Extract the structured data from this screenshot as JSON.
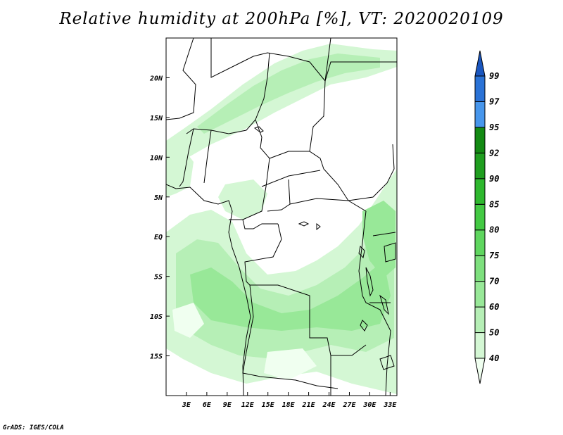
{
  "title": "Relative humidity at 200hPa [%], VT: 2020020109",
  "credit": "GrADS: IGES/COLA",
  "map": {
    "lon_range": [
      0,
      34
    ],
    "lat_range": [
      -20,
      25
    ],
    "lon_ticks": [
      {
        "value": 3,
        "label": "3E"
      },
      {
        "value": 6,
        "label": "6E"
      },
      {
        "value": 9,
        "label": "9E"
      },
      {
        "value": 12,
        "label": "12E"
      },
      {
        "value": 15,
        "label": "15E"
      },
      {
        "value": 18,
        "label": "18E"
      },
      {
        "value": 21,
        "label": "21E"
      },
      {
        "value": 24,
        "label": "24E"
      },
      {
        "value": 27,
        "label": "27E"
      },
      {
        "value": 30,
        "label": "30E"
      },
      {
        "value": 33,
        "label": "33E"
      }
    ],
    "lat_ticks": [
      {
        "value": 20,
        "label": "20N"
      },
      {
        "value": 15,
        "label": "15N"
      },
      {
        "value": 10,
        "label": "10N"
      },
      {
        "value": 5,
        "label": "5N"
      },
      {
        "value": 0,
        "label": "EQ"
      },
      {
        "value": -5,
        "label": "5S"
      },
      {
        "value": -10,
        "label": "10S"
      },
      {
        "value": -15,
        "label": "15S"
      }
    ]
  },
  "colorbar": {
    "levels": [
      "40",
      "50",
      "60",
      "70",
      "75",
      "80",
      "85",
      "90",
      "92",
      "95",
      "97",
      "99"
    ],
    "colors": [
      "#f0fff0",
      "#d4f7d4",
      "#b6efb6",
      "#98e898",
      "#7ee07e",
      "#5fd65f",
      "#43c943",
      "#2eb82e",
      "#1f9e1f",
      "#138a13",
      "#4796ec",
      "#2a72d6",
      "#1a56bf"
    ]
  }
}
